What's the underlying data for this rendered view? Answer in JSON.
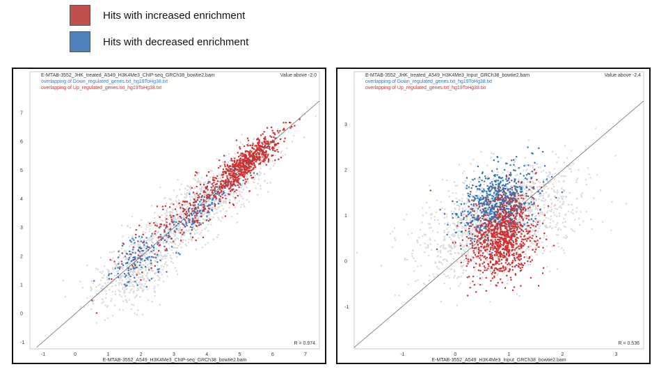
{
  "legend": {
    "increased_label": "Hits with increased enrichment",
    "decreased_label": "Hits with decreased enrichment",
    "increased_color": "#c0504d",
    "decreased_color": "#4f81bd"
  },
  "chart_data": [
    {
      "type": "scatter",
      "header_lines": [
        "E-MTAB-3552_JHK_treated_A549_H3K4Me3_ChIP-seq_GRCh38_bowtie2.bam",
        "overlapping of Down_regulated_genes.txt_hg19ToHg38.txt",
        "overlapping of Up_regulated_genes.txt_hg19ToHg38.txt"
      ],
      "value_above_label": "Value above -2.0",
      "xlabel": "E-MTAB-3552_A549_H3K4Me3_ChIP-seq_GRCh38_bowtie2.bam",
      "r_label": "R = 0.974",
      "xlim": [
        -1.4,
        7.4
      ],
      "ylim": [
        -1.2,
        7.4
      ],
      "x_ticks": [
        -1,
        0,
        1,
        2,
        3,
        4,
        5,
        6,
        7
      ],
      "y_ticks": [
        -1,
        0,
        1,
        2,
        3,
        4,
        5,
        6,
        7
      ],
      "diagonal": true,
      "series": [
        {
          "role": "background",
          "color": "#d9d9d9",
          "clusters": [
            {
              "cx": 3.6,
              "cy": 3.6,
              "sx": 1.5,
              "sy": 0.4,
              "n": 1100
            },
            {
              "cx": 1.7,
              "cy": 1.3,
              "sx": 0.7,
              "sy": 0.5,
              "n": 350
            }
          ]
        },
        {
          "role": "down",
          "color": "#3a78c2",
          "clusters": [
            {
              "cx": 1.9,
              "cy": 1.9,
              "sx": 0.55,
              "sy": 0.35,
              "n": 140
            },
            {
              "cx": 3.9,
              "cy": 3.8,
              "sx": 1.0,
              "sy": 0.22,
              "n": 140
            }
          ]
        },
        {
          "role": "up",
          "color": "#d03030",
          "clusters": [
            {
              "cx": 5.2,
              "cy": 5.3,
              "sx": 0.7,
              "sy": 0.2,
              "n": 650
            },
            {
              "cx": 3.5,
              "cy": 3.6,
              "sx": 1.3,
              "sy": 0.35,
              "n": 260
            }
          ]
        }
      ]
    },
    {
      "type": "scatter",
      "header_lines": [
        "E-MTAB-3552_JHK_treated_A549_H3K4Me3_Input_GRCh38_bowtie2.bam",
        "overlapping of Down_regulated_genes.txt_hg19ToHg38.txt",
        "overlapping of Up_regulated_genes.txt_hg19ToHg38.txt"
      ],
      "value_above_label": "Value above -2.4",
      "xlabel": "E-MTAB-3552_A549_H3K4Me3_Input_GRCh38_bowtie2.bam",
      "r_label": "R = 0.536",
      "xlim": [
        -1.9,
        3.5
      ],
      "ylim": [
        -1.9,
        3.5
      ],
      "x_ticks": [
        -1,
        0,
        1,
        2,
        3
      ],
      "y_ticks": [
        -1,
        0,
        1,
        2,
        3
      ],
      "diagonal": true,
      "series": [
        {
          "role": "background",
          "color": "#d9d9d9",
          "clusters": [
            {
              "cx": 0.8,
              "cy": 0.9,
              "sx": 0.7,
              "sy": 0.55,
              "n": 1600
            }
          ]
        },
        {
          "role": "down",
          "color": "#2e75b6",
          "clusters": [
            {
              "cx": 0.75,
              "cy": 1.3,
              "sx": 0.35,
              "sy": 0.35,
              "n": 700
            }
          ]
        },
        {
          "role": "up",
          "color": "#d03030",
          "clusters": [
            {
              "cx": 0.85,
              "cy": 0.55,
              "sx": 0.3,
              "sy": 0.45,
              "n": 1000
            }
          ]
        }
      ]
    }
  ]
}
